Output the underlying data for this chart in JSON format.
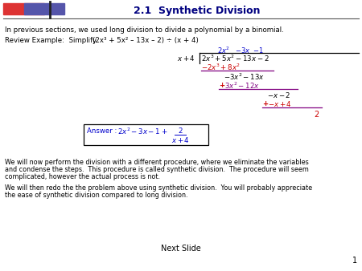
{
  "title": "2.1  Synthetic Division",
  "bg_color": "#ffffff",
  "title_color": "#000080",
  "black_color": "#000000",
  "blue_color": "#0000cc",
  "red_color": "#cc0000",
  "purple_color": "#800080",
  "line1": "In previous sections, we used long division to divide a polynomial by a binomial.",
  "review_label": "Review Example:  Simplify",
  "review_expr": "(2x³ + 5x² – 13x – 2) ÷ (x + 4)",
  "paragraph1_lines": [
    "We will now perform the division with a different procedure, where we eliminate the variables",
    "and condense the steps.  This procedure is called synthetic division.  The procedure will seem",
    "complicated, however the actual process is not."
  ],
  "paragraph2_lines": [
    "We will then redo the the problem above using synthetic division.  You will probably appreciate",
    "the ease of synthetic division compared to long division."
  ],
  "next_slide": "Next Slide",
  "page_num": "1"
}
